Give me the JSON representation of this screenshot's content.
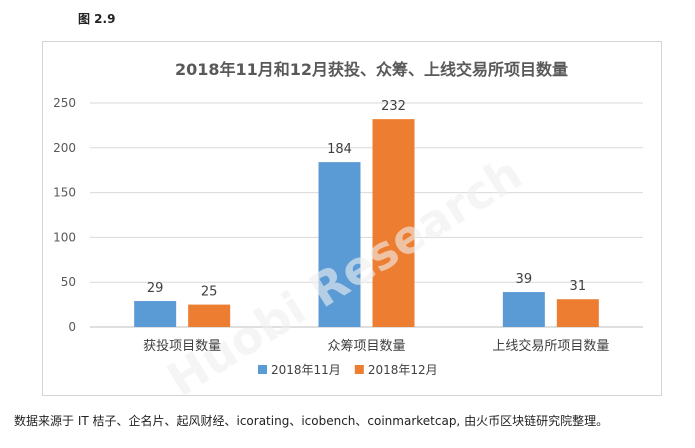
{
  "figure_label": "图 2.9",
  "source_note": "数据来源于 IT 桔子、企名片、起风财经、icorating、icobench、coinmarketcap, 由火币区块链研究院整理。",
  "watermark_text": "Huobi Research",
  "chart_data": {
    "type": "bar",
    "title": "2018年11月和12月获投、众筹、上线交易所项目数量",
    "categories": [
      "获投项目数量",
      "众筹项目数量",
      "上线交易所项目数量"
    ],
    "series": [
      {
        "name": "2018年11月",
        "values": [
          29,
          184,
          39
        ],
        "color": "#5b9bd5"
      },
      {
        "name": "2018年12月",
        "values": [
          25,
          232,
          31
        ],
        "color": "#ed7d31"
      }
    ],
    "ylim": [
      0,
      250
    ],
    "yticks": [
      0,
      50,
      100,
      150,
      200,
      250
    ],
    "grid": true,
    "legend_position": "bottom",
    "data_labels": true
  }
}
